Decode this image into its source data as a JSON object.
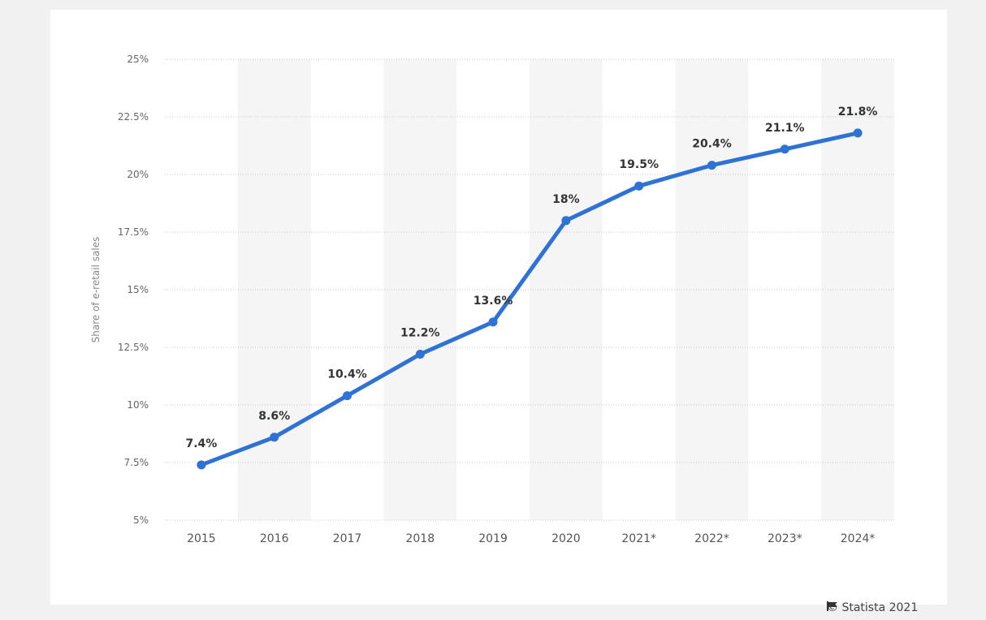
{
  "chart_data": {
    "type": "line",
    "title": "",
    "xlabel": "",
    "ylabel": "Share of e-retail sales",
    "categories": [
      "2015",
      "2016",
      "2017",
      "2018",
      "2019",
      "2020",
      "2021*",
      "2022*",
      "2023*",
      "2024*"
    ],
    "values": [
      7.4,
      8.6,
      10.4,
      12.2,
      13.6,
      18,
      19.5,
      20.4,
      21.1,
      21.8
    ],
    "data_labels": [
      "7.4%",
      "8.6%",
      "10.4%",
      "12.2%",
      "13.6%",
      "18%",
      "19.5%",
      "20.4%",
      "21.1%",
      "21.8%"
    ],
    "yticks": [
      5,
      7.5,
      10,
      12.5,
      15,
      17.5,
      20,
      22.5,
      25
    ],
    "ytick_labels": [
      "5%",
      "7.5%",
      "10%",
      "12.5%",
      "15%",
      "17.5%",
      "20%",
      "22.5%",
      "25%"
    ],
    "ylim": [
      5,
      25
    ],
    "grid": true,
    "legend": "none",
    "colors": {
      "line": "#2f72d6",
      "band": "#f5f5f5",
      "grid": "#c8c8c8"
    }
  },
  "credit": {
    "text": "© Statista 2021",
    "icon": "flag-icon"
  }
}
